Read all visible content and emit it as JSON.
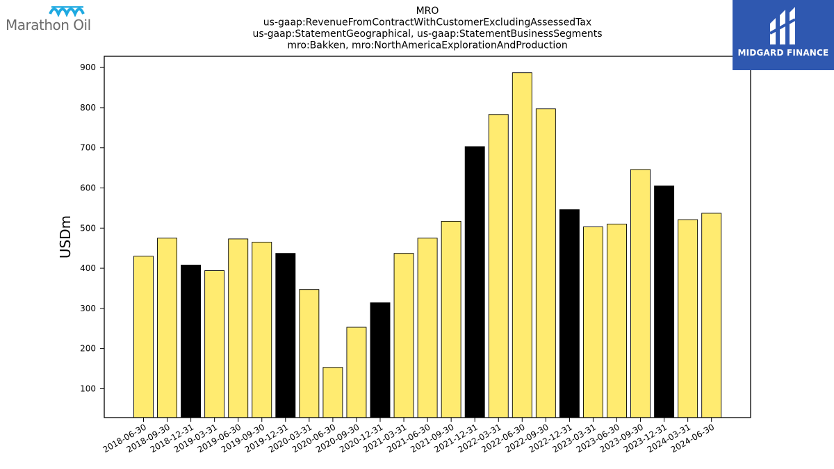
{
  "logos": {
    "left_text": "Marathon Oil",
    "right_text": "MIDGARD FINANCE"
  },
  "colors": {
    "bar_normal": "#ffeb70",
    "bar_highlight": "#000000",
    "edge": "#000000",
    "logo_right_bg": "#2f58b0",
    "logo_left_accent": "#1ea9e1"
  },
  "chart_data": {
    "type": "bar",
    "title_lines": [
      "MRO",
      "us-gaap:RevenueFromContractWithCustomerExcludingAssessedTax",
      "us-gaap:StatementGeographical, us-gaap:StatementBusinessSegments",
      "mro:Bakken, mro:NorthAmericaExplorationAndProduction"
    ],
    "xlabel": "",
    "ylabel": "USDm",
    "ylim": [
      28,
      928
    ],
    "yticks": [
      100,
      200,
      300,
      400,
      500,
      600,
      700,
      800,
      900
    ],
    "categories": [
      "2018-06-30",
      "2018-09-30",
      "2018-12-31",
      "2019-03-31",
      "2019-06-30",
      "2019-09-30",
      "2019-12-31",
      "2020-03-31",
      "2020-06-30",
      "2020-09-30",
      "2020-12-31",
      "2021-03-31",
      "2021-06-30",
      "2021-09-30",
      "2021-12-31",
      "2022-03-31",
      "2022-06-30",
      "2022-09-30",
      "2022-12-31",
      "2023-03-31",
      "2023-06-30",
      "2023-09-30",
      "2023-12-31",
      "2024-03-31",
      "2024-06-30"
    ],
    "values": [
      430,
      475,
      408,
      394,
      473,
      465,
      437,
      347,
      153,
      253,
      314,
      437,
      475,
      517,
      703,
      783,
      887,
      797,
      546,
      503,
      510,
      646,
      605,
      521,
      537
    ],
    "highlight": [
      false,
      false,
      true,
      false,
      false,
      false,
      true,
      false,
      false,
      false,
      true,
      false,
      false,
      false,
      true,
      false,
      false,
      false,
      true,
      false,
      false,
      false,
      true,
      false,
      false
    ],
    "grid": false,
    "legend": "none"
  }
}
